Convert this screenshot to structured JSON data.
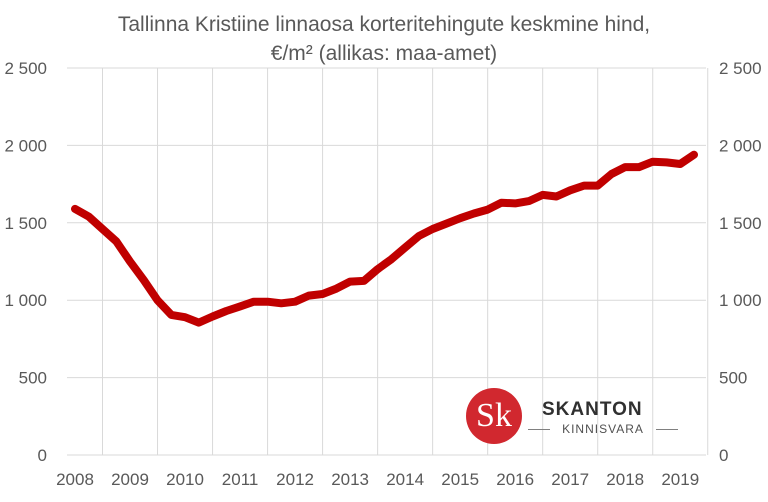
{
  "chart_data": {
    "type": "line",
    "title_line1": "Tallinna Kristiine linnaosa korteritehingute keskmine hind,",
    "title_line2": "€/m² (allikas: maa-amet)",
    "xlabel": "",
    "ylabel": "",
    "ylim": [
      0,
      2500
    ],
    "y_ticks": [
      0,
      500,
      1000,
      1500,
      2000,
      2500
    ],
    "y_tick_labels": [
      "0",
      "500",
      "1 000",
      "1 500",
      "2 000",
      "2 500"
    ],
    "x_tick_labels": [
      "2008",
      "2009",
      "2010",
      "2011",
      "2012",
      "2013",
      "2014",
      "2015",
      "2016",
      "2017",
      "2018",
      "2019"
    ],
    "grid": true,
    "secondary_y_axis": true,
    "series": [
      {
        "color": "#c00000",
        "x": [
          2008.0,
          2008.25,
          2008.5,
          2008.75,
          2009.0,
          2009.25,
          2009.5,
          2009.75,
          2010.0,
          2010.25,
          2010.5,
          2010.75,
          2011.0,
          2011.25,
          2011.5,
          2011.75,
          2012.0,
          2012.25,
          2012.5,
          2012.75,
          2013.0,
          2013.25,
          2013.5,
          2013.75,
          2014.0,
          2014.25,
          2014.5,
          2014.75,
          2015.0,
          2015.25,
          2015.5,
          2015.75,
          2016.0,
          2016.25,
          2016.5,
          2016.75,
          2017.0,
          2017.25,
          2017.5,
          2017.75,
          2018.0,
          2018.25,
          2018.5,
          2018.75,
          2019.0,
          2019.25
        ],
        "values": [
          1590,
          1540,
          1460,
          1380,
          1250,
          1130,
          1000,
          905,
          890,
          855,
          895,
          930,
          960,
          990,
          990,
          980,
          990,
          1030,
          1040,
          1075,
          1120,
          1125,
          1200,
          1265,
          1340,
          1415,
          1460,
          1495,
          1530,
          1560,
          1585,
          1630,
          1625,
          1640,
          1680,
          1670,
          1710,
          1740,
          1740,
          1815,
          1860,
          1860,
          1895,
          1890,
          1880,
          1940
        ]
      }
    ]
  },
  "brand": {
    "logo_letters": "Sk",
    "name": "SKANTON",
    "subtitle": "KINNISVARA",
    "circle_color": "#d1282f"
  }
}
